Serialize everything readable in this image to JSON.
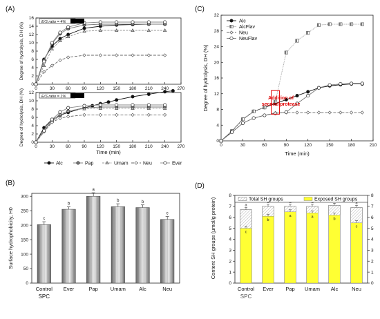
{
  "chart_data": [
    {
      "id": "A-top",
      "panel_label": "(A)",
      "type": "line",
      "annotation": "E/S ratio = 4%",
      "ylabel": "Degree of hydrolysis, DH (%)",
      "ylim": [
        0,
        16
      ],
      "yticks": [
        0,
        2,
        4,
        6,
        8,
        10,
        12,
        14,
        16
      ],
      "xlim": [
        0,
        270
      ],
      "xticks": [
        0,
        30,
        60,
        90,
        120,
        150,
        180,
        210,
        240,
        270
      ],
      "series": [
        {
          "name": "Alc",
          "x": [
            0,
            15,
            30,
            45,
            60,
            90,
            120,
            150,
            180,
            210,
            240
          ],
          "y": [
            0,
            6,
            9.2,
            11,
            12,
            13.5,
            14,
            14.3,
            14.4,
            14.5,
            14.5
          ]
        },
        {
          "name": "Pap",
          "x": [
            0,
            15,
            30,
            45,
            60,
            90,
            120,
            150,
            180,
            210,
            240
          ],
          "y": [
            0,
            5.8,
            9.8,
            12.2,
            13.4,
            14.3,
            14.5,
            14.5,
            14.5,
            14.5,
            14.5
          ]
        },
        {
          "name": "Umam",
          "x": [
            0,
            15,
            30,
            45,
            60,
            90,
            120,
            150,
            180,
            210,
            240
          ],
          "y": [
            0,
            4.5,
            8.5,
            10.5,
            11.5,
            12.8,
            13,
            13,
            13,
            13,
            13
          ]
        },
        {
          "name": "Neu",
          "x": [
            0,
            15,
            30,
            45,
            60,
            90,
            120,
            150,
            180,
            210,
            240
          ],
          "y": [
            0,
            3,
            4.5,
            5.8,
            6.5,
            7,
            7,
            7,
            7,
            7,
            7
          ]
        },
        {
          "name": "Ever",
          "x": [
            0,
            15,
            30,
            45,
            60,
            90,
            120,
            150,
            180,
            210,
            240
          ],
          "y": [
            0,
            5.5,
            10,
            12.5,
            13.8,
            14.8,
            15,
            15,
            15,
            15,
            15
          ]
        }
      ]
    },
    {
      "id": "A-bottom",
      "type": "line",
      "annotation": "E/S ratio = 1%",
      "ylabel": "Degree of hydrolysis, DH (%)",
      "xlabel": "Time (min)",
      "ylim": [
        0,
        12
      ],
      "yticks": [
        0,
        2,
        4,
        6,
        8,
        10,
        12
      ],
      "xlim": [
        0,
        270
      ],
      "xticks": [
        0,
        30,
        60,
        90,
        120,
        150,
        180,
        210,
        240,
        270
      ],
      "series": [
        {
          "name": "Alc",
          "x": [
            0,
            15,
            30,
            45,
            60,
            90,
            105,
            120,
            135,
            150,
            180,
            210,
            240,
            255
          ],
          "y": [
            0,
            3.5,
            5.5,
            6.5,
            7.2,
            8.3,
            8.8,
            9.3,
            9.7,
            10.2,
            11,
            11.6,
            12.2,
            12.4
          ]
        },
        {
          "name": "Pap",
          "x": [
            0,
            15,
            30,
            45,
            60,
            90,
            120,
            150,
            180,
            210,
            240
          ],
          "y": [
            0,
            2.8,
            5,
            6.5,
            7.5,
            8.3,
            8.5,
            8.5,
            8.5,
            8.5,
            8.5
          ]
        },
        {
          "name": "Umam",
          "x": [
            0,
            15,
            30,
            45,
            60,
            90,
            120,
            150,
            180,
            210,
            240
          ],
          "y": [
            0,
            3,
            5.3,
            6.8,
            7.6,
            8.1,
            8.2,
            8.2,
            8.2,
            8.2,
            8.2
          ]
        },
        {
          "name": "Neu",
          "x": [
            0,
            15,
            30,
            45,
            60,
            90,
            120,
            150,
            180,
            210,
            240
          ],
          "y": [
            0,
            2.5,
            4.8,
            5.8,
            6.2,
            6.6,
            6.6,
            6.6,
            6.6,
            6.6,
            6.6
          ]
        },
        {
          "name": "Ever",
          "x": [
            0,
            15,
            30,
            45,
            60,
            90,
            120,
            150,
            180,
            210,
            240
          ],
          "y": [
            0,
            2.8,
            5.5,
            7.3,
            8.3,
            8.8,
            9,
            9,
            9,
            9,
            9
          ]
        }
      ],
      "legend": [
        "Alc",
        "Pap",
        "Umam",
        "Neu",
        "Ever"
      ]
    },
    {
      "id": "B",
      "panel_label": "(B)",
      "type": "bar",
      "ylabel": "Surface hydrophobicity, H0",
      "ylim": [
        0,
        300
      ],
      "yticks": [
        0,
        50,
        100,
        150,
        200,
        250,
        300
      ],
      "categories": [
        "Control",
        "Ever",
        "Pap",
        "Umam",
        "Alc",
        "Neu"
      ],
      "subcaption": "SPC",
      "values": [
        202,
        255,
        300,
        264,
        261,
        220
      ],
      "errors": [
        10,
        8,
        12,
        10,
        9,
        10
      ],
      "letters": [
        "c",
        "b",
        "a",
        "b",
        "b",
        "c"
      ]
    },
    {
      "id": "C",
      "panel_label": "(C)",
      "type": "line",
      "ylabel": "Degree of hydrolysis, DH (%)",
      "xlabel": "Time (min)",
      "ylim": [
        0,
        32
      ],
      "yticks": [
        0,
        4,
        8,
        12,
        16,
        20,
        24,
        28,
        32
      ],
      "xlim": [
        0,
        210
      ],
      "xticks": [
        0,
        30,
        60,
        90,
        120,
        150,
        180,
        210
      ],
      "annotation": "Addition of second protease",
      "annotation_x": 75,
      "series": [
        {
          "name": "Alc",
          "x": [
            0,
            15,
            30,
            45,
            60,
            75,
            90,
            105,
            120,
            135,
            150,
            165,
            180,
            195
          ],
          "y": [
            0,
            2.5,
            5.5,
            7.5,
            8.5,
            9.5,
            10.5,
            11.5,
            12.5,
            13.5,
            14,
            14.3,
            14.5,
            14.5
          ]
        },
        {
          "name": "AlcFlav",
          "x": [
            0,
            15,
            30,
            45,
            60,
            75,
            90,
            105,
            120,
            135,
            150,
            165,
            180,
            195
          ],
          "y": [
            0,
            2.5,
            5.5,
            7.5,
            8.5,
            10,
            22.5,
            25.5,
            27.5,
            29.5,
            29.7,
            29.7,
            29.7,
            29.7
          ]
        },
        {
          "name": "Neu",
          "x": [
            0,
            15,
            30,
            45,
            60,
            75,
            90,
            105,
            120,
            135,
            150,
            165,
            180,
            195
          ],
          "y": [
            0,
            2.2,
            4.5,
            5.8,
            6.5,
            7.1,
            7.2,
            7.2,
            7.2,
            7.2,
            7.2,
            7.2,
            7.2,
            7.2
          ]
        },
        {
          "name": "NeuFlav",
          "x": [
            0,
            15,
            30,
            45,
            60,
            75,
            90,
            105,
            120,
            135,
            150,
            165,
            180,
            195
          ],
          "y": [
            0,
            2.2,
            4.5,
            5.8,
            6.5,
            7,
            7.3,
            9.5,
            11.5,
            13.5,
            14.2,
            14.5,
            14.6,
            14.6
          ]
        }
      ]
    },
    {
      "id": "D",
      "panel_label": "(D)",
      "type": "bar",
      "ylabel": "Content SH groups (μmol/g protein)",
      "ylim": [
        0,
        8
      ],
      "yticks": [
        0,
        1,
        2,
        3,
        4,
        5,
        6,
        7,
        8
      ],
      "categories": [
        "Control",
        "Ever",
        "Pap",
        "Umam",
        "Alc",
        "Neu"
      ],
      "subcaption": "SPC",
      "series": [
        {
          "name": "Total SH groups",
          "values": [
            6.7,
            7.0,
            7.0,
            7.0,
            7.1,
            6.9
          ],
          "letters": [
            "a",
            "a",
            "a",
            "a",
            "a",
            "a"
          ]
        },
        {
          "name": "Exposed SH groups",
          "values": [
            5.0,
            6.1,
            6.5,
            6.4,
            6.2,
            5.5
          ],
          "letters": [
            "c",
            "b",
            "a",
            "a",
            "b",
            "c"
          ]
        }
      ]
    }
  ]
}
